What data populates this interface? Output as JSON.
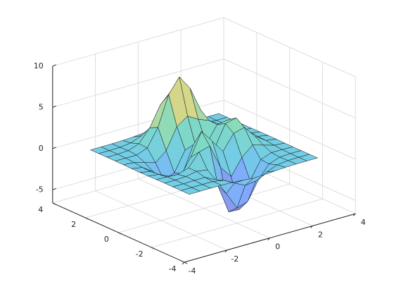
{
  "chart_data": {
    "type": "surface",
    "x": [
      -3,
      -2.5,
      -2,
      -1.5,
      -1,
      -0.5,
      0,
      0.5,
      1,
      1.5,
      2,
      2.5,
      3
    ],
    "y": [
      -3,
      -2.5,
      -2,
      -1.5,
      -1,
      -0.5,
      0,
      0.5,
      1,
      1.5,
      2,
      2.5,
      3
    ],
    "z": [
      [
        0,
        0,
        0,
        0,
        -0.03,
        -0.14,
        -0.24,
        -0.22,
        -0.11,
        -0.03,
        -0.01,
        0,
        0
      ],
      [
        0,
        0,
        0.01,
        0,
        -0.23,
        -0.92,
        -1.57,
        -1.41,
        -0.69,
        -0.18,
        -0.03,
        0,
        0
      ],
      [
        0,
        0.01,
        0.05,
        0.05,
        -0.59,
        -2.63,
        -4.75,
        -4.34,
        -2.1,
        -0.53,
        -0.06,
        0,
        0
      ],
      [
        0,
        0.01,
        0.08,
        0.33,
        0.15,
        -2.19,
        -5.68,
        -5.76,
        -2.64,
        -0.44,
        0.04,
        0.03,
        0
      ],
      [
        -0.01,
        -0.06,
        -0.13,
        0.3,
        1.86,
        2.22,
        -0.72,
        -2.22,
        -0.27,
        0.88,
        0.5,
        0.11,
        0.01
      ],
      [
        -0.03,
        -0.2,
        -0.8,
        -1.21,
        0.8,
        3.55,
        2.0,
        0.39,
        2.2,
        2.56,
        1.12,
        0.24,
        0.03
      ],
      [
        -0.04,
        -0.3,
        -1.33,
        -2.77,
        -1.65,
        1.48,
        0.98,
        0.37,
        2.94,
        3.27,
        1.41,
        0.3,
        0.03
      ],
      [
        -0.03,
        -0.25,
        -1.12,
        -2.49,
        -2.0,
        0.39,
        0.46,
        0.38,
        2.38,
        2.56,
        1.09,
        0.23,
        0.03
      ],
      [
        -0.01,
        -0.11,
        -0.48,
        -0.86,
        0.23,
        2.79,
        3.69,
        2.93,
        2.43,
        1.58,
        0.58,
        0.11,
        0.01
      ],
      [
        0,
        -0.02,
        -0.01,
        0.48,
        2.61,
        6.2,
        8.0,
        6.25,
        3.25,
        1.19,
        0.29,
        0.05,
        0
      ],
      [
        0,
        0.01,
        0.08,
        0.55,
        2.09,
        4.55,
        5.85,
        4.56,
        2.21,
        0.68,
        0.13,
        0.02,
        0
      ],
      [
        0,
        0,
        0.03,
        0.19,
        0.69,
        1.47,
        1.88,
        1.47,
        0.7,
        0.2,
        0.04,
        0,
        0
      ],
      [
        0,
        0,
        0.01,
        0.03,
        0.11,
        0.23,
        0.3,
        0.23,
        0.11,
        0.03,
        0.01,
        0,
        0
      ]
    ],
    "xlim": [
      -4,
      4
    ],
    "ylim": [
      -4,
      4
    ],
    "zlim": [
      -6.6,
      10
    ],
    "xticks": [
      -4,
      -2,
      0,
      2,
      4
    ],
    "yticks": [
      -4,
      -2,
      0,
      2,
      4
    ],
    "zticks": [
      -5,
      0,
      5,
      10
    ],
    "grid": true,
    "colormap": [
      "#3e26a8",
      "#2f6ffd",
      "#13a9d9",
      "#2ec594",
      "#bbbc3a",
      "#f9fb0e"
    ]
  }
}
